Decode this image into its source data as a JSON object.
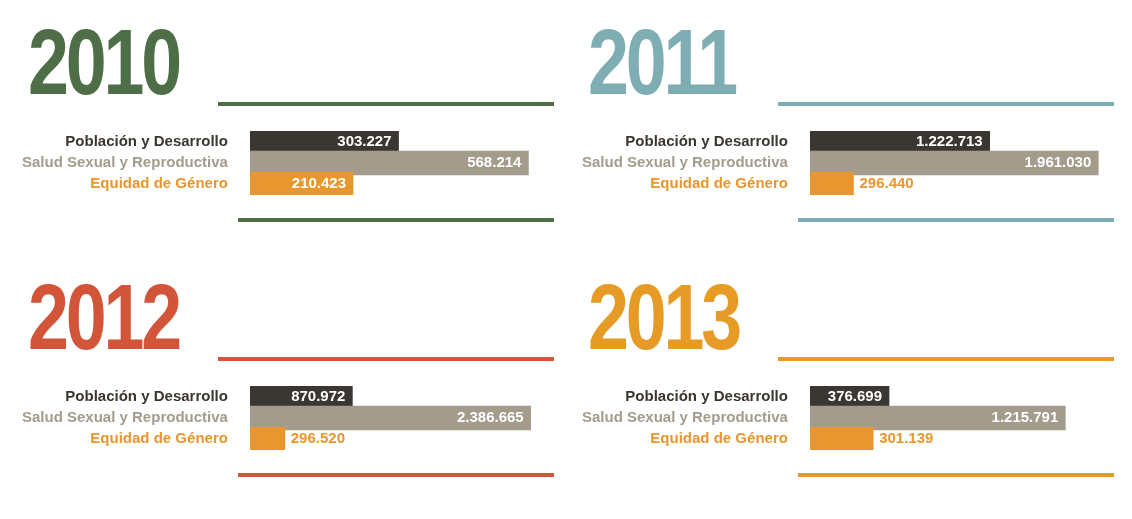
{
  "chart_data": [
    {
      "type": "bar",
      "orientation": "horizontal",
      "title": "2010",
      "categories": [
        "Población y Desarrollo",
        "Salud Sexual y Reproductiva",
        "Equidad de Género"
      ],
      "values": [
        303227,
        568214,
        210423
      ],
      "colors": [
        "#3a3631",
        "#a39c8c",
        "#e8962e"
      ],
      "value_labels": [
        "303.227",
        "568.214",
        "210.423"
      ]
    },
    {
      "type": "bar",
      "orientation": "horizontal",
      "title": "2011",
      "categories": [
        "Población y Desarrollo",
        "Salud Sexual y Reproductiva",
        "Equidad de Género"
      ],
      "values": [
        1222713,
        1961030,
        296440
      ],
      "colors": [
        "#3a3631",
        "#a39c8c",
        "#e8962e"
      ],
      "value_labels": [
        "1.222.713",
        "1.961.030",
        "296.440"
      ]
    },
    {
      "type": "bar",
      "orientation": "horizontal",
      "title": "2012",
      "categories": [
        "Población y Desarrollo",
        "Salud Sexual y Reproductiva",
        "Equidad de Género"
      ],
      "values": [
        870972,
        2386665,
        296520
      ],
      "colors": [
        "#3a3631",
        "#a39c8c",
        "#e8962e"
      ],
      "value_labels": [
        "870.972",
        "2.386.665",
        "296.520"
      ]
    },
    {
      "type": "bar",
      "orientation": "horizontal",
      "title": "2013",
      "categories": [
        "Población y Desarrollo",
        "Salud Sexual y Reproductiva",
        "Equidad de Género"
      ],
      "values": [
        376699,
        1215791,
        301139
      ],
      "colors": [
        "#3a3631",
        "#a39c8c",
        "#e8962e"
      ],
      "value_labels": [
        "376.699",
        "1.215.791",
        "301.139"
      ]
    }
  ]
}
